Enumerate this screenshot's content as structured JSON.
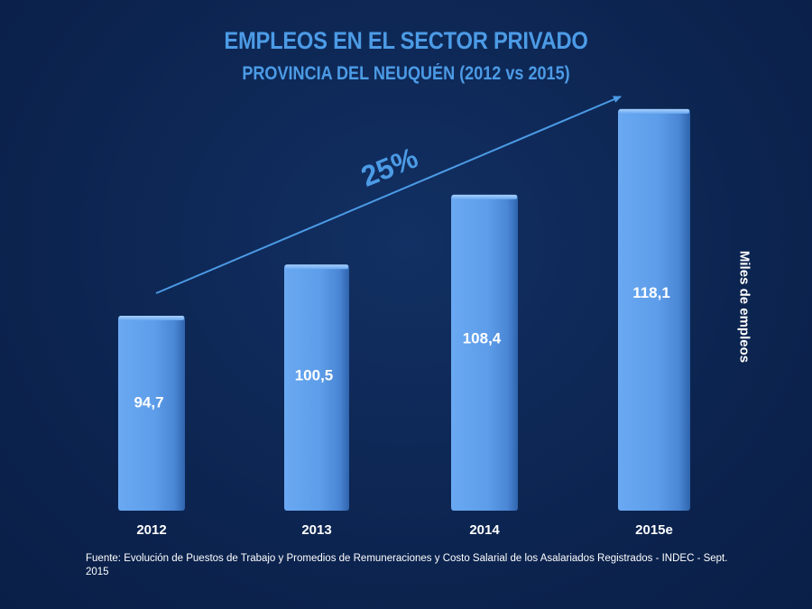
{
  "title": "EMPLEOS EN EL SECTOR PRIVADO",
  "subtitle": "PROVINCIA DEL NEUQUÉN (2012 vs 2015)",
  "source": "Fuente: Evolución de Puestos de Trabajo y Promedios de Remuneraciones y Costo Salarial de los Asalariados Registrados - INDEC - Sept. 2015",
  "colors": {
    "background": "#0d2552",
    "bar": "#5b9cea",
    "accent": "#4c9be6",
    "text": "#ffffff"
  },
  "chart_data": {
    "type": "bar",
    "title": "EMPLEOS EN EL SECTOR PRIVADO",
    "subtitle": "PROVINCIA DEL NEUQUÉN (2012 vs 2015)",
    "categories": [
      "2012",
      "2013",
      "2014",
      "2015e"
    ],
    "values": [
      94.7,
      100.5,
      108.4,
      118.1
    ],
    "value_labels": [
      "94,7",
      "100,5",
      "108,4",
      "118,1"
    ],
    "ylabel": "Miles de empleos",
    "annotation": "25%",
    "grid": false,
    "legend": "none"
  }
}
